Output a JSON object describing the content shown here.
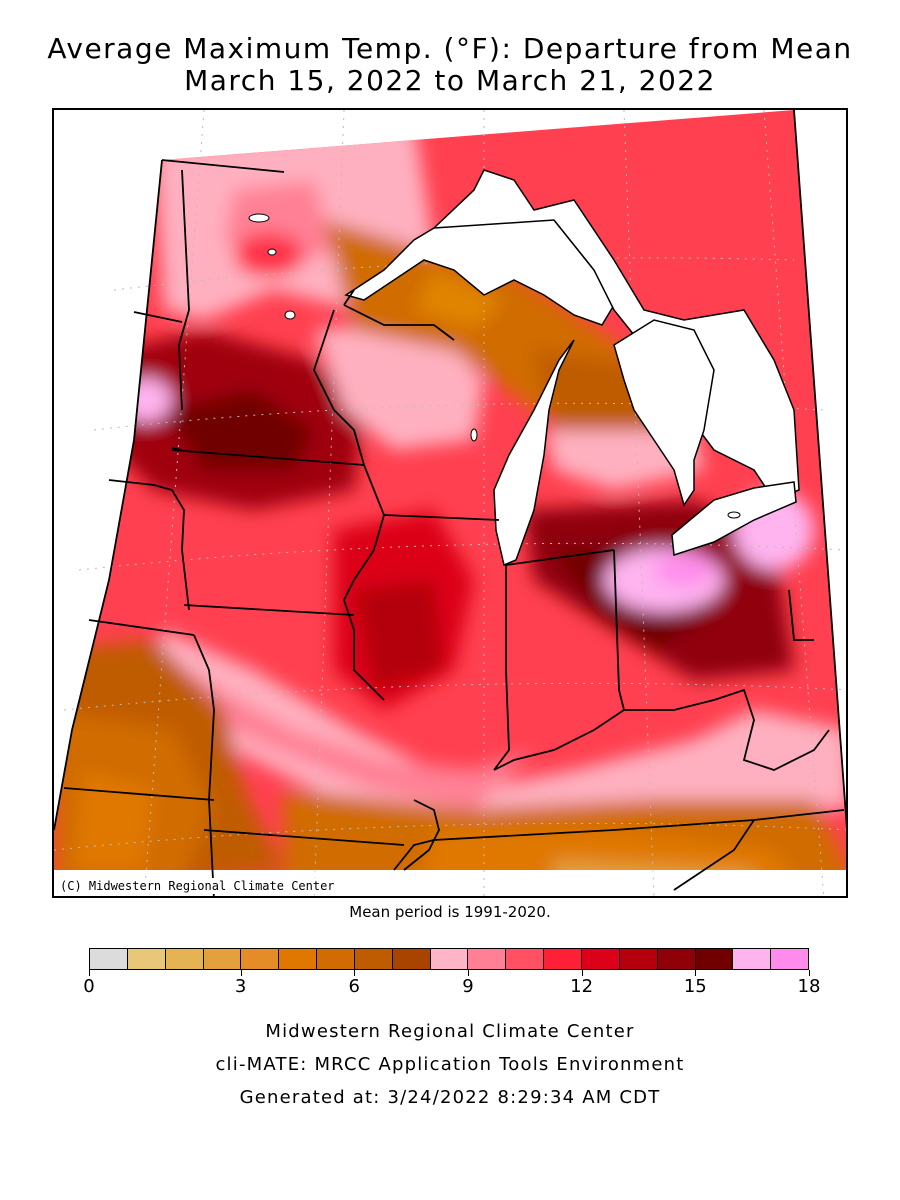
{
  "title": {
    "line1": "Average Maximum Temp. (°F): Departure from Mean",
    "line2": "March 15, 2022 to March 21, 2022"
  },
  "map": {
    "copyright": "(C) Midwestern Regional Climate Center",
    "colors": {
      "lake": "#ffffff",
      "boundary": "#000000",
      "graticule": "#bbbbbb"
    }
  },
  "mean_period": "Mean period is 1991-2020.",
  "legend": {
    "colors": [
      "#dcdcdc",
      "#e8c878",
      "#e4b454",
      "#e4a03c",
      "#e48c28",
      "#e07800",
      "#d06c00",
      "#c05c00",
      "#a84400",
      "#ffb4c8",
      "#ff8094",
      "#ff5064",
      "#ff2038",
      "#dc0018",
      "#b4000c",
      "#900008",
      "#700000",
      "#ffb4f0",
      "#ff8cec"
    ],
    "tick_labels": [
      "0",
      "3",
      "6",
      "9",
      "12",
      "15",
      "18"
    ]
  },
  "footer": {
    "line1": "Midwestern Regional Climate Center",
    "line2": "cli-MATE: MRCC Application Tools Environment",
    "line3": "Generated at: 3/24/2022 8:29:34 AM CDT"
  }
}
